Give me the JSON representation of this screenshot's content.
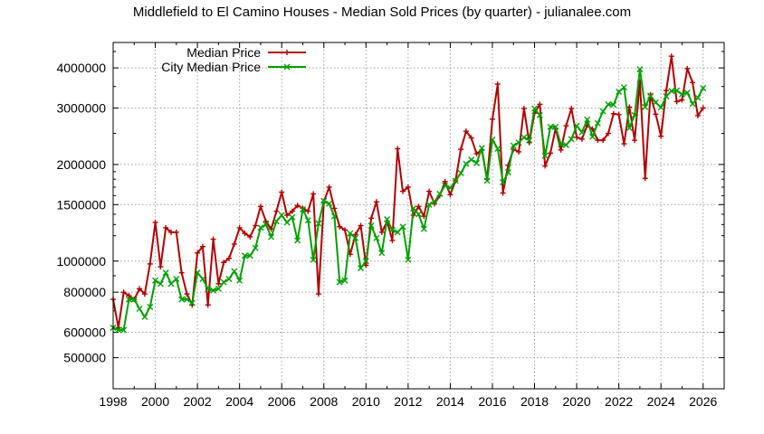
{
  "chart_data": {
    "type": "line",
    "title": "Middlefield to El Camino Houses - Median Sold Prices (by quarter) - julianalee.com",
    "xlabel": "",
    "ylabel": "",
    "xlim": [
      1998,
      2027
    ],
    "ylim": [
      400000,
      4800000
    ],
    "y_scale": "log",
    "grid": true,
    "legend_position": "top-left",
    "x_ticks": [
      1998,
      2000,
      2002,
      2004,
      2006,
      2008,
      2010,
      2012,
      2014,
      2016,
      2018,
      2020,
      2022,
      2024,
      2026
    ],
    "x_tick_labels": [
      "1998",
      "2000",
      "2002",
      "2004",
      "2006",
      "2008",
      "2010",
      "2012",
      "2014",
      "2016",
      "2018",
      "2020",
      "2022",
      "2024",
      "2026"
    ],
    "y_ticks": [
      500000,
      600000,
      800000,
      1000000,
      1500000,
      2000000,
      3000000,
      4000000
    ],
    "y_tick_labels": [
      "500000",
      "600000",
      "800000",
      "1000000",
      "1500000",
      "2000000",
      "3000000",
      "4000000"
    ],
    "series": [
      {
        "name": "Median Price",
        "color": "#b40000",
        "marker": "plus",
        "points": [
          [
            1998.0,
            760000
          ],
          [
            1998.25,
            620000
          ],
          [
            1998.5,
            800000
          ],
          [
            1998.75,
            780000
          ],
          [
            1999.0,
            760000
          ],
          [
            1999.25,
            820000
          ],
          [
            1999.5,
            790000
          ],
          [
            1999.75,
            980000
          ],
          [
            2000.0,
            1320000
          ],
          [
            2000.25,
            960000
          ],
          [
            2000.5,
            1270000
          ],
          [
            2000.75,
            1230000
          ],
          [
            2001.0,
            1230000
          ],
          [
            2001.25,
            920000
          ],
          [
            2001.5,
            790000
          ],
          [
            2001.75,
            730000
          ],
          [
            2002.0,
            1060000
          ],
          [
            2002.25,
            1110000
          ],
          [
            2002.5,
            730000
          ],
          [
            2002.75,
            1170000
          ],
          [
            2003.0,
            850000
          ],
          [
            2003.25,
            990000
          ],
          [
            2003.5,
            1020000
          ],
          [
            2003.75,
            1130000
          ],
          [
            2004.0,
            1270000
          ],
          [
            2004.25,
            1220000
          ],
          [
            2004.5,
            1190000
          ],
          [
            2004.75,
            1290000
          ],
          [
            2005.0,
            1480000
          ],
          [
            2005.25,
            1330000
          ],
          [
            2005.5,
            1260000
          ],
          [
            2005.75,
            1430000
          ],
          [
            2006.0,
            1640000
          ],
          [
            2006.25,
            1390000
          ],
          [
            2006.5,
            1430000
          ],
          [
            2006.75,
            1490000
          ],
          [
            2007.0,
            1460000
          ],
          [
            2007.25,
            1430000
          ],
          [
            2007.5,
            1620000
          ],
          [
            2007.75,
            790000
          ],
          [
            2008.0,
            1530000
          ],
          [
            2008.25,
            1700000
          ],
          [
            2008.5,
            1460000
          ],
          [
            2008.75,
            1280000
          ],
          [
            2009.0,
            1250000
          ],
          [
            2009.25,
            1050000
          ],
          [
            2009.5,
            1210000
          ],
          [
            2009.75,
            1290000
          ],
          [
            2010.0,
            970000
          ],
          [
            2010.25,
            1360000
          ],
          [
            2010.5,
            1530000
          ],
          [
            2010.75,
            1230000
          ],
          [
            2011.0,
            1330000
          ],
          [
            2011.25,
            1160000
          ],
          [
            2011.5,
            2240000
          ],
          [
            2011.75,
            1650000
          ],
          [
            2012.0,
            1700000
          ],
          [
            2012.25,
            1390000
          ],
          [
            2012.5,
            1480000
          ],
          [
            2012.75,
            1380000
          ],
          [
            2013.0,
            1650000
          ],
          [
            2013.25,
            1510000
          ],
          [
            2013.5,
            1600000
          ],
          [
            2013.75,
            1770000
          ],
          [
            2014.0,
            1610000
          ],
          [
            2014.25,
            1780000
          ],
          [
            2014.5,
            2230000
          ],
          [
            2014.75,
            2540000
          ],
          [
            2015.0,
            2420000
          ],
          [
            2015.25,
            2160000
          ],
          [
            2015.5,
            2220000
          ],
          [
            2015.75,
            1800000
          ],
          [
            2016.0,
            2770000
          ],
          [
            2016.25,
            3560000
          ],
          [
            2016.5,
            1630000
          ],
          [
            2016.75,
            1990000
          ],
          [
            2017.0,
            2230000
          ],
          [
            2017.25,
            2190000
          ],
          [
            2017.5,
            2990000
          ],
          [
            2017.75,
            2340000
          ],
          [
            2018.0,
            2890000
          ],
          [
            2018.25,
            3080000
          ],
          [
            2018.5,
            1980000
          ],
          [
            2018.75,
            2170000
          ],
          [
            2019.0,
            2590000
          ],
          [
            2019.25,
            2220000
          ],
          [
            2019.5,
            2640000
          ],
          [
            2019.75,
            2990000
          ],
          [
            2020.0,
            2430000
          ],
          [
            2020.25,
            2400000
          ],
          [
            2020.5,
            2650000
          ],
          [
            2020.75,
            2580000
          ],
          [
            2021.0,
            2380000
          ],
          [
            2021.25,
            2380000
          ],
          [
            2021.5,
            2500000
          ],
          [
            2021.75,
            2880000
          ],
          [
            2022.0,
            2860000
          ],
          [
            2022.25,
            2320000
          ],
          [
            2022.5,
            3020000
          ],
          [
            2022.75,
            2380000
          ],
          [
            2023.0,
            3620000
          ],
          [
            2023.25,
            1810000
          ],
          [
            2023.5,
            3300000
          ],
          [
            2023.75,
            2870000
          ],
          [
            2024.0,
            2450000
          ],
          [
            2024.25,
            3400000
          ],
          [
            2024.5,
            4350000
          ],
          [
            2024.75,
            3140000
          ],
          [
            2025.0,
            3180000
          ],
          [
            2025.25,
            3980000
          ],
          [
            2025.5,
            3600000
          ],
          [
            2025.75,
            2840000
          ],
          [
            2026.0,
            3000000
          ]
        ]
      },
      {
        "name": "City Median Price",
        "color": "#00a000",
        "marker": "x",
        "points": [
          [
            1998.0,
            620000
          ],
          [
            1998.25,
            610000
          ],
          [
            1998.5,
            610000
          ],
          [
            1998.75,
            760000
          ],
          [
            1999.0,
            760000
          ],
          [
            1999.25,
            710000
          ],
          [
            1999.5,
            670000
          ],
          [
            1999.75,
            720000
          ],
          [
            2000.0,
            870000
          ],
          [
            2000.25,
            850000
          ],
          [
            2000.5,
            920000
          ],
          [
            2000.75,
            850000
          ],
          [
            2001.0,
            880000
          ],
          [
            2001.25,
            760000
          ],
          [
            2001.5,
            760000
          ],
          [
            2001.75,
            740000
          ],
          [
            2002.0,
            920000
          ],
          [
            2002.25,
            880000
          ],
          [
            2002.5,
            820000
          ],
          [
            2002.75,
            810000
          ],
          [
            2003.0,
            820000
          ],
          [
            2003.25,
            860000
          ],
          [
            2003.5,
            880000
          ],
          [
            2003.75,
            930000
          ],
          [
            2004.0,
            870000
          ],
          [
            2004.25,
            1040000
          ],
          [
            2004.5,
            1040000
          ],
          [
            2004.75,
            1100000
          ],
          [
            2005.0,
            1270000
          ],
          [
            2005.25,
            1300000
          ],
          [
            2005.5,
            1190000
          ],
          [
            2005.75,
            1330000
          ],
          [
            2006.0,
            1390000
          ],
          [
            2006.25,
            1320000
          ],
          [
            2006.5,
            1370000
          ],
          [
            2006.75,
            1160000
          ],
          [
            2007.0,
            1450000
          ],
          [
            2007.25,
            1340000
          ],
          [
            2007.5,
            1010000
          ],
          [
            2007.75,
            1310000
          ],
          [
            2008.0,
            1540000
          ],
          [
            2008.25,
            1510000
          ],
          [
            2008.5,
            1380000
          ],
          [
            2008.75,
            860000
          ],
          [
            2009.0,
            870000
          ],
          [
            2009.25,
            1220000
          ],
          [
            2009.5,
            1180000
          ],
          [
            2009.75,
            950000
          ],
          [
            2010.0,
            1000000
          ],
          [
            2010.25,
            1290000
          ],
          [
            2010.5,
            1180000
          ],
          [
            2010.75,
            1060000
          ],
          [
            2011.0,
            1350000
          ],
          [
            2011.25,
            1250000
          ],
          [
            2011.5,
            1230000
          ],
          [
            2011.75,
            1280000
          ],
          [
            2012.0,
            1010000
          ],
          [
            2012.25,
            1460000
          ],
          [
            2012.5,
            1400000
          ],
          [
            2012.75,
            1260000
          ],
          [
            2013.0,
            1500000
          ],
          [
            2013.25,
            1530000
          ],
          [
            2013.5,
            1620000
          ],
          [
            2013.75,
            1720000
          ],
          [
            2014.0,
            1690000
          ],
          [
            2014.25,
            1780000
          ],
          [
            2014.5,
            1880000
          ],
          [
            2014.75,
            2010000
          ],
          [
            2015.0,
            2070000
          ],
          [
            2015.25,
            2020000
          ],
          [
            2015.5,
            2250000
          ],
          [
            2015.75,
            1780000
          ],
          [
            2016.0,
            2390000
          ],
          [
            2016.25,
            2240000
          ],
          [
            2016.5,
            1760000
          ],
          [
            2016.75,
            1890000
          ],
          [
            2017.0,
            2290000
          ],
          [
            2017.25,
            2340000
          ],
          [
            2017.5,
            2430000
          ],
          [
            2017.75,
            2380000
          ],
          [
            2018.0,
            2990000
          ],
          [
            2018.25,
            2850000
          ],
          [
            2018.5,
            2130000
          ],
          [
            2018.75,
            2620000
          ],
          [
            2019.0,
            2620000
          ],
          [
            2019.25,
            2310000
          ],
          [
            2019.5,
            2300000
          ],
          [
            2019.75,
            2400000
          ],
          [
            2020.0,
            2640000
          ],
          [
            2020.25,
            2520000
          ],
          [
            2020.5,
            2760000
          ],
          [
            2020.75,
            2440000
          ],
          [
            2021.0,
            2690000
          ],
          [
            2021.25,
            2930000
          ],
          [
            2021.5,
            3080000
          ],
          [
            2021.75,
            3070000
          ],
          [
            2022.0,
            3370000
          ],
          [
            2022.25,
            3480000
          ],
          [
            2022.5,
            2600000
          ],
          [
            2022.75,
            2850000
          ],
          [
            2023.0,
            3960000
          ],
          [
            2023.25,
            3020000
          ],
          [
            2023.5,
            3280000
          ],
          [
            2023.75,
            3120000
          ],
          [
            2024.0,
            3010000
          ],
          [
            2024.25,
            3260000
          ],
          [
            2024.5,
            3390000
          ],
          [
            2024.75,
            3400000
          ],
          [
            2025.0,
            3310000
          ],
          [
            2025.25,
            3350000
          ],
          [
            2025.5,
            3090000
          ],
          [
            2025.75,
            3230000
          ],
          [
            2026.0,
            3460000
          ]
        ]
      }
    ]
  }
}
